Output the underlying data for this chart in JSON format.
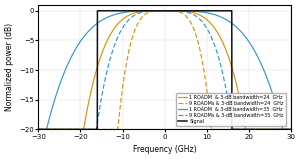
{
  "title": "",
  "xlabel": "Frequency (GHz)",
  "ylabel": "Normalized power (dB)",
  "xlim": [
    -30,
    30
  ],
  "ylim": [
    -20,
    1
  ],
  "yticks": [
    0,
    -5,
    -10,
    -15,
    -20
  ],
  "xticks": [
    -30,
    -20,
    -10,
    0,
    10,
    20,
    30
  ],
  "bw_24_half": 12,
  "bw_35_half": 17.5,
  "n_roadm": 9,
  "signal_half_bw": 16,
  "sg_order": 2,
  "legend_entries": [
    "1 ROADM  & 3-dB bandwidth=24  GHz",
    "9 ROADMs & 3-dB bandwidth=24  GHz",
    "1 ROADM  & 3-dB bandwidth=35  GHz",
    "9 ROADMs & 3-dB bandwidth=35  GHz",
    "Signal"
  ],
  "colors": {
    "bw24": "#D4950A",
    "bw35": "#3399CC",
    "signal": "#111111"
  },
  "background": "#ffffff",
  "grid_color": "#cccccc"
}
